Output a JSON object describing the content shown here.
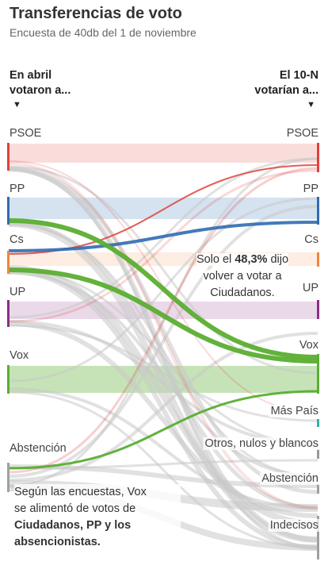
{
  "header": {
    "title": "Transferencias de voto",
    "subtitle": "Encuesta de 40db del 1 de noviembre"
  },
  "columns": {
    "left_line1": "En abril",
    "left_line2": "votaron a...",
    "right_line1": "El 10-N",
    "right_line2": "votarían a...",
    "arrow": "▼"
  },
  "colors": {
    "PSOE": "#e0413a",
    "PP": "#2f6cb3",
    "Cs": "#f0853a",
    "UP": "#8b2f86",
    "Vox": "#5aae32",
    "MasPais": "#31b2a8",
    "Otros": "#9a9a9a",
    "Abstencion": "#a0a0a0",
    "Indecisos": "#a0a0a0",
    "flow_default": "#c8c8c8",
    "flow_vox": "#5aae32",
    "flow_pp_cs": "#2f6cb3"
  },
  "left_nodes": [
    {
      "id": "PSOE",
      "label": "PSOE"
    },
    {
      "id": "PP",
      "label": "PP"
    },
    {
      "id": "Cs",
      "label": "Cs"
    },
    {
      "id": "UP",
      "label": "UP"
    },
    {
      "id": "Vox",
      "label": "Vox"
    },
    {
      "id": "Abstencion",
      "label": "Abstención"
    }
  ],
  "right_nodes": [
    {
      "id": "PSOE",
      "label": "PSOE"
    },
    {
      "id": "PP",
      "label": "PP"
    },
    {
      "id": "Cs",
      "label": "Cs"
    },
    {
      "id": "UP",
      "label": "UP"
    },
    {
      "id": "Vox",
      "label": "Vox"
    },
    {
      "id": "MasPais",
      "label": "Más País"
    },
    {
      "id": "Otros",
      "label": "Otros, nulos y blancos"
    },
    {
      "id": "Abstencion",
      "label": "Abstención"
    },
    {
      "id": "Indecisos",
      "label": "Indecisos"
    }
  ],
  "annotations": {
    "cs_prefix": "Solo el ",
    "cs_value": "48,3%",
    "cs_line1_end": " dijo",
    "cs_line2": "volver a votar a",
    "cs_line3": "Ciudadanos.",
    "vox_line1": "Según las encuestas, Vox",
    "vox_line2": "se alimentó de votos de",
    "vox_bold1": "Ciudadanos, PP y los",
    "vox_bold2": "absencionistas."
  }
}
